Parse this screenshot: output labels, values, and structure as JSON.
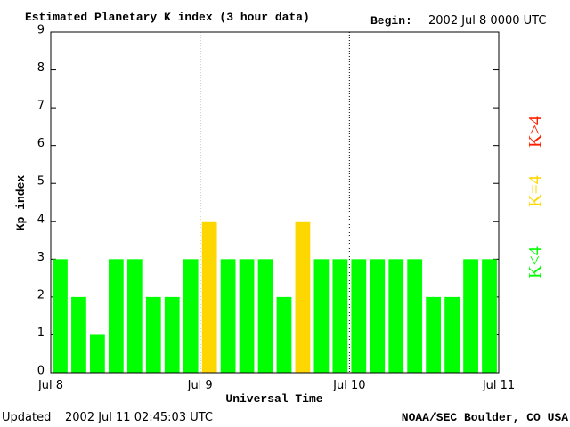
{
  "chart_data": {
    "type": "bar",
    "title": "Estimated Planetary K index (3 hour data)",
    "begin_label": "Begin:",
    "begin_value": "2002 Jul 8 0000 UTC",
    "ylabel": "Kp index",
    "xlabel": "Universal Time",
    "updated_label": "Updated",
    "updated_value": "2002 Jul 11 02:45:03 UTC",
    "credit": "NOAA/SEC Boulder, CO USA",
    "x": [
      1.5,
      4.5,
      7.5,
      10.5,
      13.5,
      16.5,
      19.5,
      22.5,
      25.5,
      28.5,
      31.5,
      34.5,
      37.5,
      40.5,
      43.5,
      46.5,
      49.5,
      52.5,
      55.5,
      58.5,
      61.5,
      64.5,
      67.5,
      70.5
    ],
    "values": [
      3,
      2,
      1,
      3,
      3,
      2,
      2,
      3,
      4,
      3,
      3,
      3,
      2,
      4,
      3,
      3,
      3,
      3,
      3,
      3,
      2,
      2,
      3,
      3
    ],
    "colors": [
      "#00ff00",
      "#00ff00",
      "#00ff00",
      "#00ff00",
      "#00ff00",
      "#00ff00",
      "#00ff00",
      "#00ff00",
      "#ffd700",
      "#00ff00",
      "#00ff00",
      "#00ff00",
      "#00ff00",
      "#ffd700",
      "#00ff00",
      "#00ff00",
      "#00ff00",
      "#00ff00",
      "#00ff00",
      "#00ff00",
      "#00ff00",
      "#00ff00",
      "#00ff00",
      "#00ff00"
    ],
    "xlim": [
      0,
      72
    ],
    "xticks": [
      {
        "value": 0,
        "label": "Jul 8"
      },
      {
        "value": 24,
        "label": "Jul 9"
      },
      {
        "value": 48,
        "label": "Jul 10"
      },
      {
        "value": 72,
        "label": "Jul 11"
      }
    ],
    "ylim": [
      0,
      9
    ],
    "yticks": [
      0,
      1,
      2,
      3,
      4,
      5,
      6,
      7,
      8,
      9
    ],
    "legend": [
      {
        "name": "K<4",
        "color": "#00ff00"
      },
      {
        "name": "K=4",
        "color": "#ffd700"
      },
      {
        "name": "K>4",
        "color": "#ff2000"
      }
    ]
  }
}
